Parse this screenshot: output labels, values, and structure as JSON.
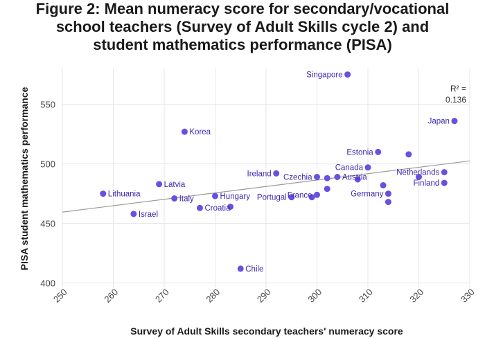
{
  "chart_data": {
    "type": "scatter",
    "title": "Figure 2: Mean numeracy score for secondary/vocational school teachers (Survey of Adult Skills cycle 2) and student mathematics performance (PISA)",
    "title_lines": [
      "Figure 2: Mean numeracy score for secondary/vocational",
      "school teachers (Survey of Adult Skills cycle 2) and",
      "student mathematics performance (PISA)"
    ],
    "xlabel": "Survey of Adult Skills secondary teachers' numeracy score",
    "ylabel": "PISA student mathematics performance",
    "xlim": [
      250,
      330
    ],
    "ylim": [
      398,
      580
    ],
    "xticks": [
      250,
      260,
      270,
      280,
      290,
      300,
      310,
      320,
      330
    ],
    "yticks": [
      400,
      450,
      500,
      550
    ],
    "grid": true,
    "annotation": {
      "label": "R² =",
      "value": "0.136"
    },
    "trendline": {
      "x": [
        250,
        330
      ],
      "y": [
        459.5,
        502.5
      ]
    },
    "point_color": "#6a4fe0",
    "trend_color": "#999999",
    "points": [
      {
        "label": "Singapore",
        "x": 306,
        "y": 575,
        "label_side": "left"
      },
      {
        "label": "Japan",
        "x": 327,
        "y": 536,
        "label_side": "left"
      },
      {
        "label": "Korea",
        "x": 274,
        "y": 527,
        "label_side": "right"
      },
      {
        "label": "Estonia",
        "x": 312,
        "y": 510,
        "label_side": "left"
      },
      {
        "label": "",
        "x": 318,
        "y": 508
      },
      {
        "label": "Canada",
        "x": 310,
        "y": 497,
        "label_side": "left"
      },
      {
        "label": "Netherlands",
        "x": 325,
        "y": 493,
        "label_side": "left"
      },
      {
        "label": "Ireland",
        "x": 292,
        "y": 492,
        "label_side": "left"
      },
      {
        "label": "",
        "x": 320,
        "y": 489
      },
      {
        "label": "Czechia",
        "x": 300,
        "y": 489,
        "label_side": "left"
      },
      {
        "label": "Austria",
        "x": 304,
        "y": 489,
        "label_side": "right"
      },
      {
        "label": "",
        "x": 302,
        "y": 488
      },
      {
        "label": "",
        "x": 308,
        "y": 487
      },
      {
        "label": "Finland",
        "x": 325,
        "y": 484,
        "label_side": "left"
      },
      {
        "label": "Latvia",
        "x": 269,
        "y": 483,
        "label_side": "right"
      },
      {
        "label": "",
        "x": 313,
        "y": 482
      },
      {
        "label": "",
        "x": 302,
        "y": 479
      },
      {
        "label": "Lithuania",
        "x": 258,
        "y": 475,
        "label_side": "right"
      },
      {
        "label": "Germany",
        "x": 314,
        "y": 475,
        "label_side": "left"
      },
      {
        "label": "France",
        "x": 300,
        "y": 474,
        "label_side": "left"
      },
      {
        "label": "Hungary",
        "x": 280,
        "y": 473,
        "label_side": "right"
      },
      {
        "label": "Portugal",
        "x": 295,
        "y": 472,
        "label_side": "left"
      },
      {
        "label": "",
        "x": 299,
        "y": 472
      },
      {
        "label": "Italy",
        "x": 272,
        "y": 471,
        "label_side": "right"
      },
      {
        "label": "",
        "x": 314,
        "y": 468
      },
      {
        "label": "",
        "x": 283,
        "y": 464
      },
      {
        "label": "Croatia",
        "x": 277,
        "y": 463,
        "label_side": "right"
      },
      {
        "label": "Israel",
        "x": 264,
        "y": 458,
        "label_side": "right"
      },
      {
        "label": "Chile",
        "x": 285,
        "y": 412,
        "label_side": "right"
      }
    ]
  }
}
